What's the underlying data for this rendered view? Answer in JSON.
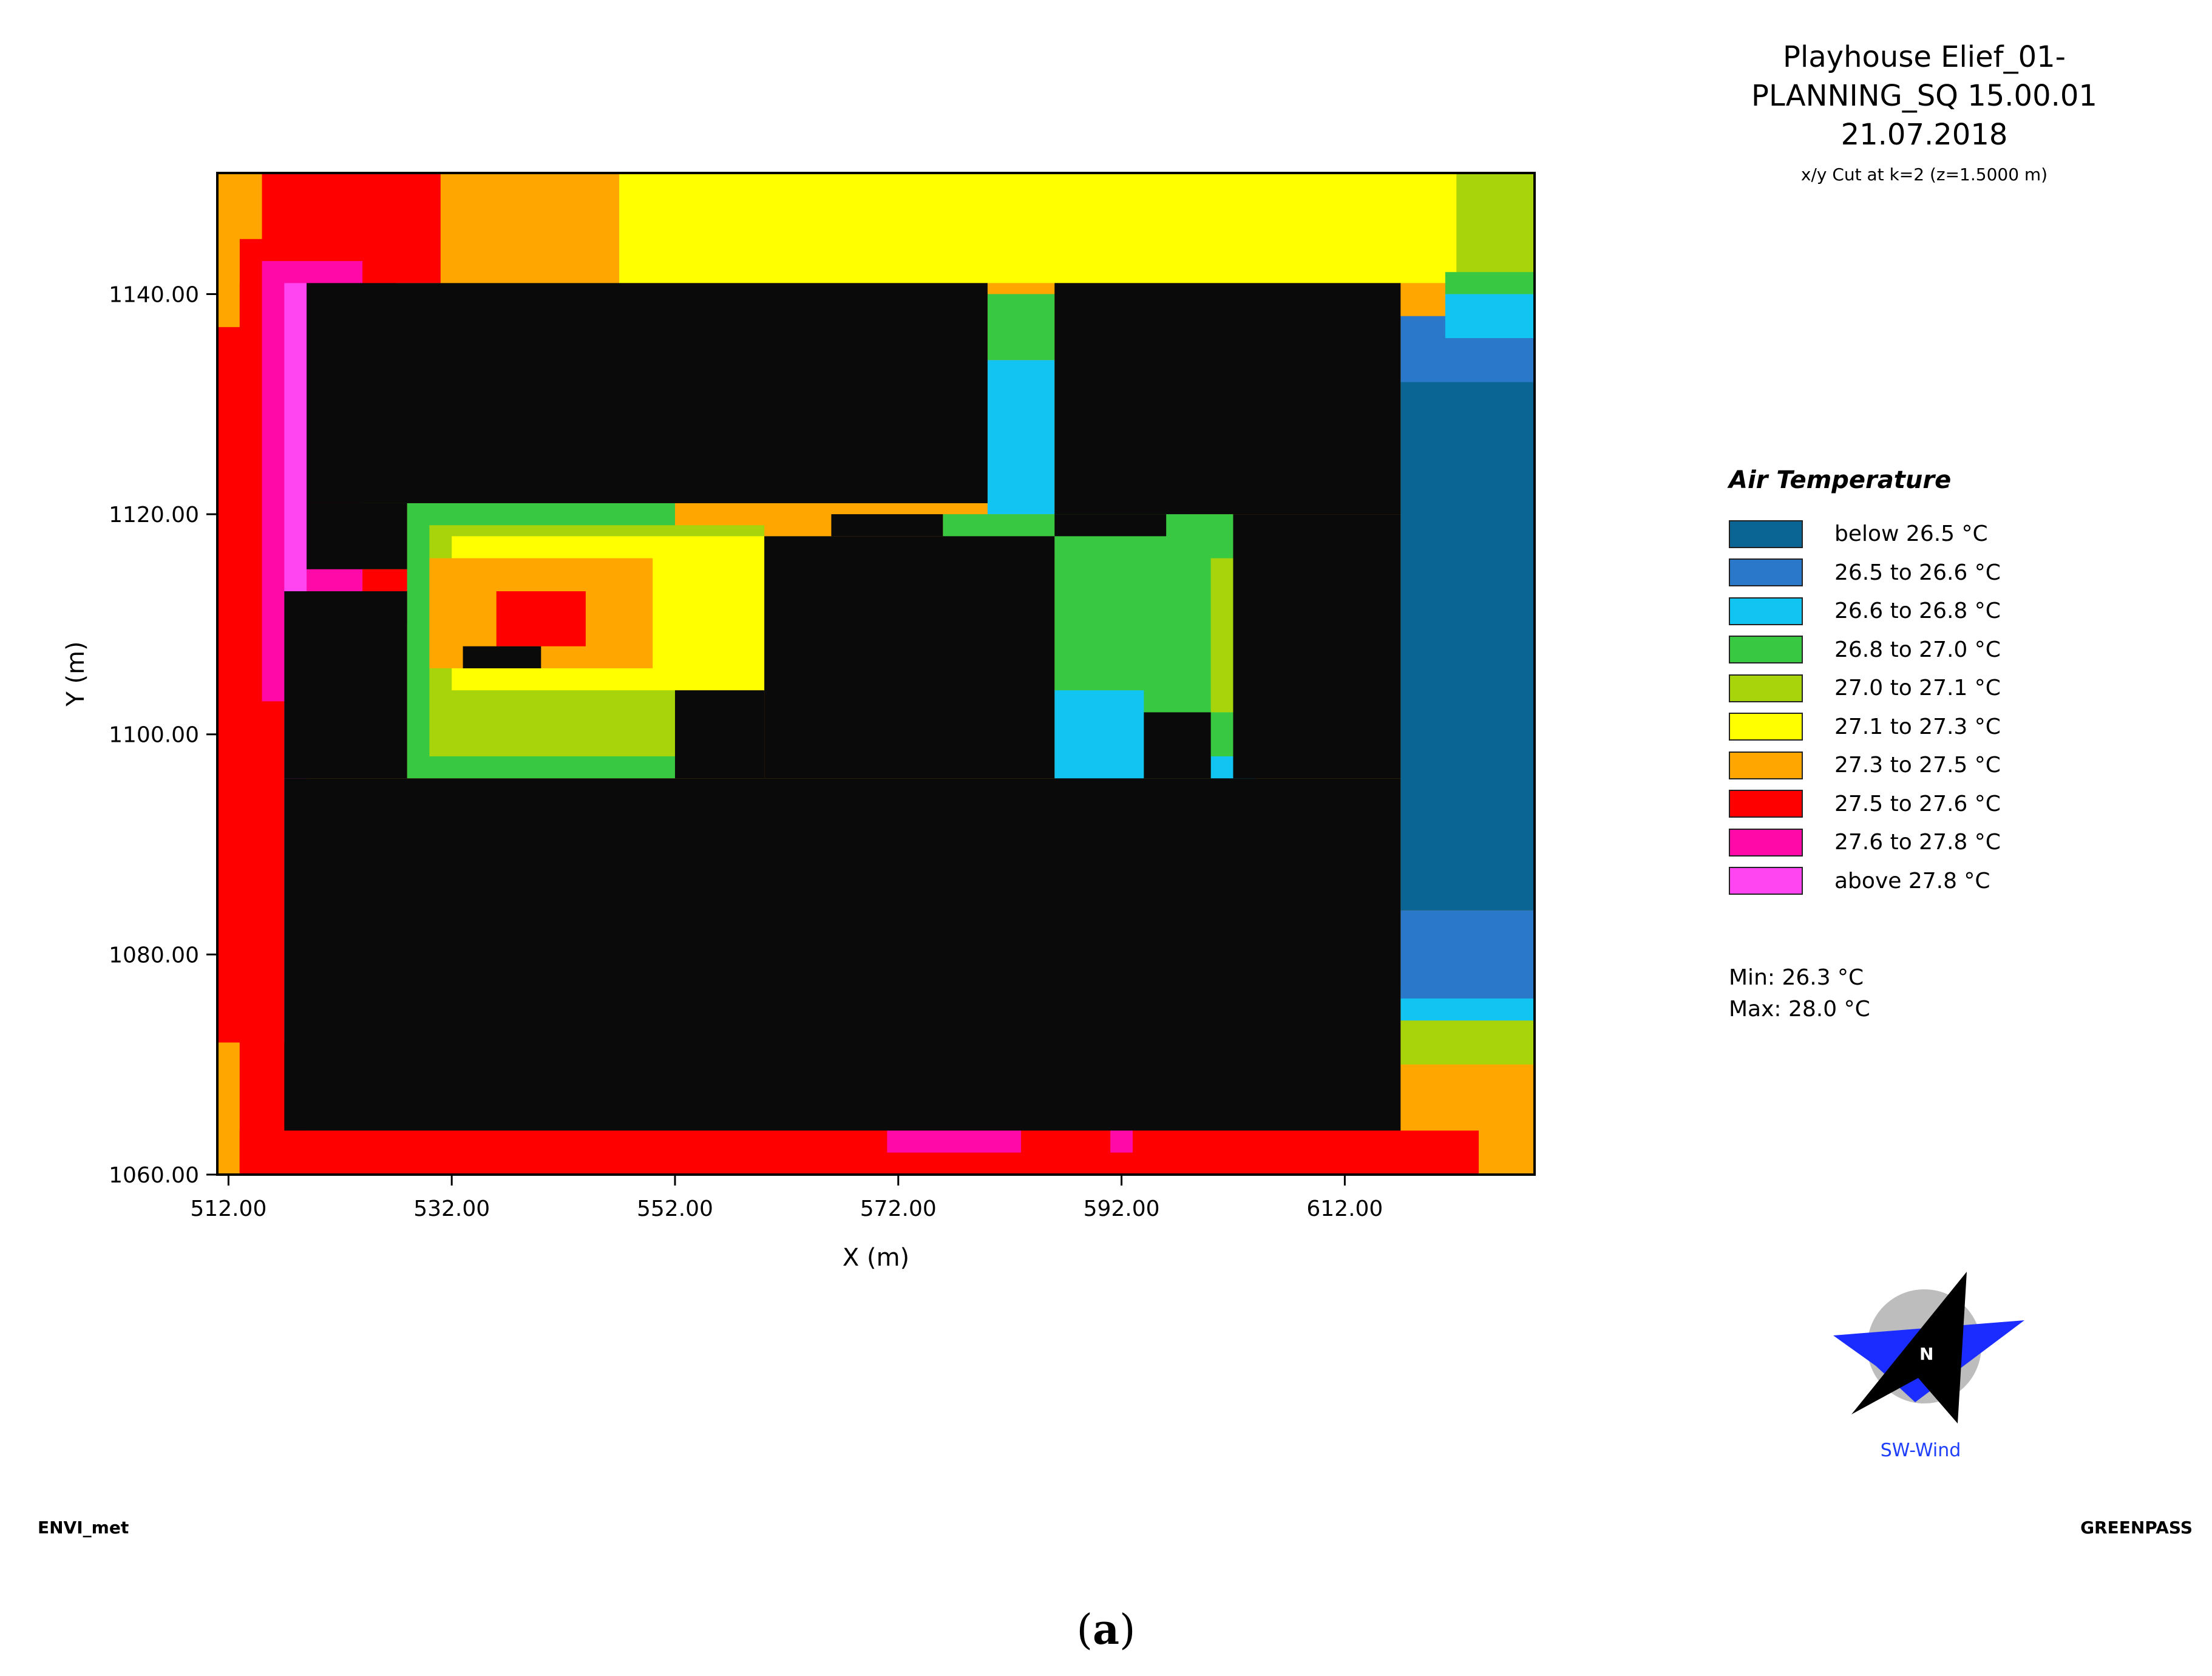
{
  "header": {
    "title_lines": [
      "Playhouse Elief_01-",
      "PLANNING_SQ 15.00.01",
      "21.07.2018"
    ],
    "subtitle": "x/y Cut at k=2 (z=1.5000 m)"
  },
  "legend": {
    "title": "Air Temperature",
    "items": [
      {
        "label": "below 26.5 °C",
        "color": "#0a6494"
      },
      {
        "label": "26.5 to 26.6 °C",
        "color": "#2a78c9"
      },
      {
        "label": "26.6 to 26.8 °C",
        "color": "#12c4f2"
      },
      {
        "label": "26.8 to 27.0 °C",
        "color": "#38c842"
      },
      {
        "label": "27.0 to 27.1 °C",
        "color": "#a8d40c"
      },
      {
        "label": "27.1 to 27.3 °C",
        "color": "#ffff00"
      },
      {
        "label": "27.3 to 27.5 °C",
        "color": "#ffa600"
      },
      {
        "label": "27.5 to 27.6 °C",
        "color": "#ff0000"
      },
      {
        "label": "27.6 to 27.8 °C",
        "color": "#ff0aa8"
      },
      {
        "label": "above 27.8 °C",
        "color": "#ff44f2"
      }
    ]
  },
  "stats": {
    "min": "Min: 26.3 °C",
    "max": "Max: 28.0 °C"
  },
  "compass": {
    "north_label": "N",
    "wind_label": "SW-Wind"
  },
  "footer": {
    "left": "ENVI_met",
    "right": "GREENPASS"
  },
  "caption": {
    "open": "(",
    "letter": "a",
    "close": ")"
  },
  "chart_data": {
    "type": "heatmap",
    "title": "",
    "xlabel": "X (m)",
    "ylabel": "Y (m)",
    "xlim": [
      511,
      629
    ],
    "ylim": [
      1060,
      1151
    ],
    "x_ticks": [
      "512.00",
      "532.00",
      "552.00",
      "572.00",
      "592.00",
      "612.00"
    ],
    "x_tick_values": [
      512,
      532,
      552,
      572,
      592,
      612
    ],
    "y_ticks": [
      "1060.00",
      "1080.00",
      "1100.00",
      "1120.00",
      "1140.00"
    ],
    "y_tick_values": [
      1060,
      1080,
      1100,
      1120,
      1140
    ],
    "building_color": "#0a0a0a",
    "class_colors": [
      "#0a6494",
      "#2a78c9",
      "#12c4f2",
      "#38c842",
      "#a8d40c",
      "#ffff00",
      "#ffa600",
      "#ff0000",
      "#ff0aa8",
      "#ff44f2"
    ],
    "cells": [
      {
        "class": 6,
        "x0": 511,
        "x1": 629,
        "y0": 1060,
        "y1": 1151
      },
      {
        "class": 5,
        "x0": 547,
        "x1": 623,
        "y0": 1141,
        "y1": 1151
      },
      {
        "class": 4,
        "x0": 622,
        "x1": 629,
        "y0": 1137,
        "y1": 1151
      },
      {
        "class": 7,
        "x0": 515,
        "x1": 531,
        "y0": 1141,
        "y1": 1151
      },
      {
        "class": 7,
        "x0": 513,
        "x1": 527,
        "y0": 1137,
        "y1": 1145
      },
      {
        "class": 7,
        "x0": 511,
        "x1": 517,
        "y0": 1060,
        "y1": 1141
      },
      {
        "class": 7,
        "x0": 513,
        "x1": 519,
        "y0": 1060,
        "y1": 1141
      },
      {
        "class": 8,
        "x0": 515,
        "x1": 524,
        "y0": 1103,
        "y1": 1143
      },
      {
        "class": 9,
        "x0": 517,
        "x1": 519,
        "y0": 1072,
        "y1": 1141
      },
      {
        "class": 7,
        "x0": 524,
        "x1": 530,
        "y0": 1110,
        "y1": 1115
      },
      {
        "class": 6,
        "x0": 511,
        "x1": 513,
        "y0": 1137,
        "y1": 1151
      },
      {
        "class": 6,
        "x0": 511,
        "x1": 513,
        "y0": 1060,
        "y1": 1072
      },
      {
        "class": 7,
        "x0": 513,
        "x1": 624,
        "y0": 1060,
        "y1": 1064
      },
      {
        "class": 8,
        "x0": 571,
        "x1": 583,
        "y0": 1062,
        "y1": 1064
      },
      {
        "class": 8,
        "x0": 591,
        "x1": 593,
        "y0": 1062,
        "y1": 1064
      },
      {
        "class": 4,
        "x0": 617,
        "x1": 629,
        "y0": 1070,
        "y1": 1075
      },
      {
        "class": 2,
        "x0": 617,
        "x1": 629,
        "y0": 1074,
        "y1": 1077
      },
      {
        "class": 1,
        "x0": 617,
        "x1": 629,
        "y0": 1076,
        "y1": 1084
      },
      {
        "class": 0,
        "x0": 617,
        "x1": 629,
        "y0": 1084,
        "y1": 1132
      },
      {
        "class": 1,
        "x0": 617,
        "x1": 629,
        "y0": 1132,
        "y1": 1138
      },
      {
        "class": 2,
        "x0": 621,
        "x1": 629,
        "y0": 1136,
        "y1": 1140
      },
      {
        "class": 3,
        "x0": 621,
        "x1": 629,
        "y0": 1140,
        "y1": 1142
      },
      {
        "class": 3,
        "x0": 580,
        "x1": 586,
        "y0": 1134,
        "y1": 1140
      },
      {
        "class": 2,
        "x0": 580,
        "x1": 586,
        "y0": 1120,
        "y1": 1134
      },
      {
        "class": 3,
        "x0": 576,
        "x1": 586,
        "y0": 1116,
        "y1": 1120
      },
      {
        "class": 3,
        "x0": 586,
        "x1": 602,
        "y0": 1096,
        "y1": 1120
      },
      {
        "class": 4,
        "x0": 600,
        "x1": 602,
        "y0": 1102,
        "y1": 1116
      },
      {
        "class": 2,
        "x0": 586,
        "x1": 594,
        "y0": 1094,
        "y1": 1104
      },
      {
        "class": 2,
        "x0": 600,
        "x1": 604,
        "y0": 1094,
        "y1": 1098
      },
      {
        "class": 3,
        "x0": 528,
        "x1": 552,
        "y0": 1096,
        "y1": 1121
      },
      {
        "class": 4,
        "x0": 530,
        "x1": 560,
        "y0": 1098,
        "y1": 1119
      },
      {
        "class": 5,
        "x0": 532,
        "x1": 570,
        "y0": 1104,
        "y1": 1118
      },
      {
        "class": 6,
        "x0": 530,
        "x1": 550,
        "y0": 1106,
        "y1": 1116
      },
      {
        "class": 7,
        "x0": 536,
        "x1": 544,
        "y0": 1108,
        "y1": 1113
      },
      {
        "class": 6,
        "x0": 566,
        "x1": 574,
        "y0": 1110,
        "y1": 1118
      },
      {
        "class": 0,
        "x0": 548,
        "x1": 566,
        "y0": 1080,
        "y1": 1090
      },
      {
        "class": 0,
        "x0": 543,
        "x1": 548,
        "y0": 1076,
        "y1": 1082
      },
      {
        "class": 1,
        "x0": 566,
        "x1": 570,
        "y0": 1084,
        "y1": 1090
      },
      {
        "class": 1,
        "x0": 575,
        "x1": 580,
        "y0": 1078,
        "y1": 1088
      },
      {
        "class": 2,
        "x0": 570,
        "x1": 574,
        "y0": 1074,
        "y1": 1078
      },
      {
        "class": 1,
        "x0": 583,
        "x1": 595,
        "y0": 1082,
        "y1": 1090
      },
      {
        "class": 0,
        "x0": 585,
        "x1": 590,
        "y0": 1076,
        "y1": 1082
      },
      {
        "class": 1,
        "x0": 595,
        "x1": 602,
        "y0": 1082,
        "y1": 1084
      },
      {
        "class": 1,
        "x0": 600,
        "x1": 602,
        "y0": 1074,
        "y1": 1088
      },
      {
        "class": 1,
        "x0": 602,
        "x1": 605,
        "y0": 1072,
        "y1": 1075
      },
      {
        "class": 2,
        "x0": 605,
        "x1": 607,
        "y0": 1072,
        "y1": 1075
      },
      {
        "class": 2,
        "x0": 598,
        "x1": 604,
        "y0": 1088,
        "y1": 1092
      },
      {
        "class": 1,
        "x0": 604,
        "x1": 606,
        "y0": 1085,
        "y1": 1087
      },
      {
        "class": 2,
        "x0": 596,
        "x1": 598,
        "y0": 1120,
        "y1": 1124
      }
    ],
    "buildings": [
      {
        "x0": 519,
        "x1": 580,
        "y0": 1121,
        "y1": 1141
      },
      {
        "x0": 519,
        "x1": 528,
        "y0": 1115,
        "y1": 1121
      },
      {
        "x0": 586,
        "x1": 617,
        "y0": 1120,
        "y1": 1141
      },
      {
        "x0": 586,
        "x1": 596,
        "y0": 1118,
        "y1": 1120
      },
      {
        "x0": 566,
        "x1": 576,
        "y0": 1118,
        "y1": 1120
      },
      {
        "x0": 517,
        "x1": 617,
        "y0": 1064,
        "y1": 1096
      },
      {
        "x0": 517,
        "x1": 528,
        "y0": 1096,
        "y1": 1113
      },
      {
        "x0": 560,
        "x1": 586,
        "y0": 1096,
        "y1": 1118
      },
      {
        "x0": 552,
        "x1": 560,
        "y0": 1096,
        "y1": 1104
      },
      {
        "x0": 602,
        "x1": 617,
        "y0": 1096,
        "y1": 1120
      },
      {
        "x0": 594,
        "x1": 600,
        "y0": 1096,
        "y1": 1102
      },
      {
        "x0": 533,
        "x1": 540,
        "y0": 1106,
        "y1": 1108
      }
    ]
  }
}
